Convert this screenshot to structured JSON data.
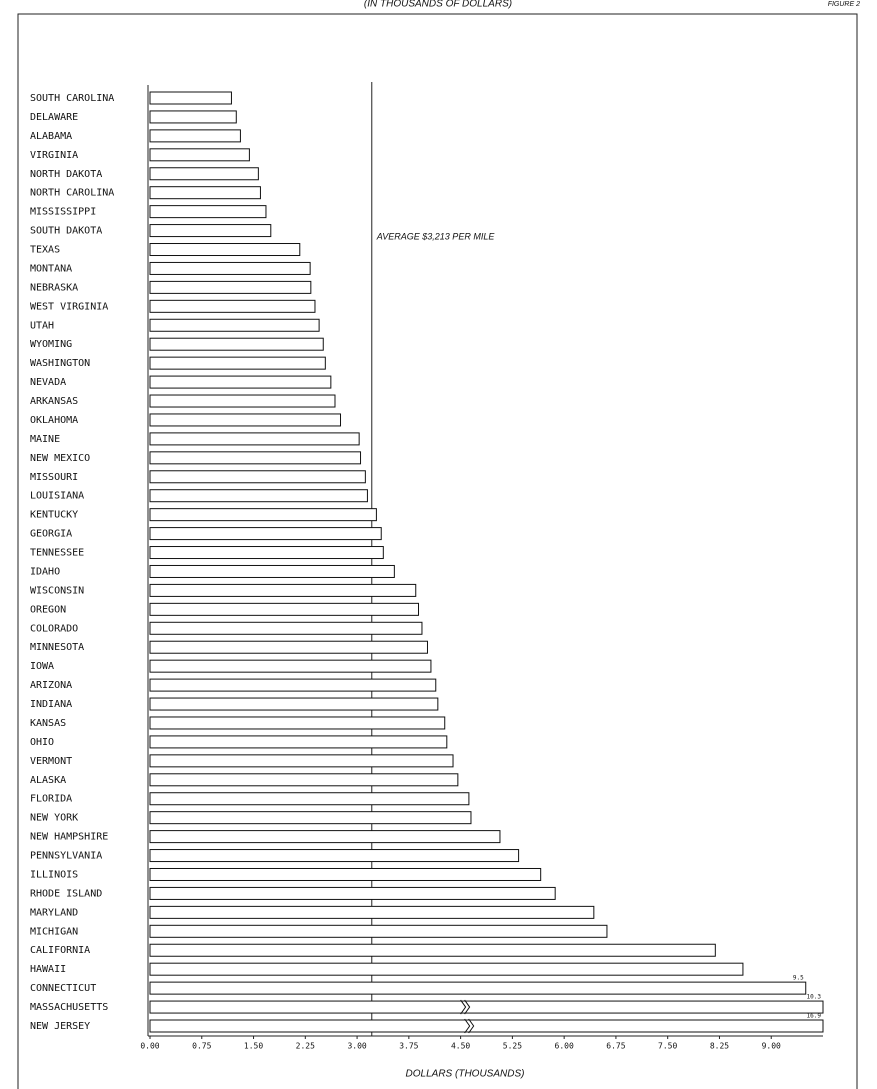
{
  "chart_data": {
    "type": "barh",
    "title": "(IN THOUSANDS OF DOLLARS)",
    "figure_label": "FIGURE 2",
    "x_label": "DOLLARS (THOUSANDS)",
    "annotation": "AVERAGE $3,213 PER MILE",
    "average": 3.213,
    "categories": [
      "SOUTH CAROLINA",
      "DELAWARE",
      "ALABAMA",
      "VIRGINIA",
      "NORTH DAKOTA",
      "NORTH CAROLINA",
      "MISSISSIPPI",
      "SOUTH DAKOTA",
      "TEXAS",
      "MONTANA",
      "NEBRASKA",
      "WEST VIRGINIA",
      "UTAH",
      "WYOMING",
      "WASHINGTON",
      "NEVADA",
      "ARKANSAS",
      "OKLAHOMA",
      "MAINE",
      "NEW MEXICO",
      "MISSOURI",
      "LOUISIANA",
      "KENTUCKY",
      "GEORGIA",
      "TENNESSEE",
      "IDAHO",
      "WISCONSIN",
      "OREGON",
      "COLORADO",
      "MINNESOTA",
      "IOWA",
      "ARIZONA",
      "INDIANA",
      "KANSAS",
      "OHIO",
      "VERMONT",
      "ALASKA",
      "FLORIDA",
      "NEW YORK",
      "NEW HAMPSHIRE",
      "PENNSYLVANIA",
      "ILLINOIS",
      "RHODE ISLAND",
      "MARYLAND",
      "MICHIGAN",
      "CALIFORNIA",
      "HAWAII",
      "CONNECTICUT",
      "MASSACHUSETTS",
      "NEW JERSEY"
    ],
    "values": [
      1.18,
      1.25,
      1.31,
      1.44,
      1.57,
      1.6,
      1.68,
      1.75,
      2.17,
      2.32,
      2.33,
      2.39,
      2.45,
      2.51,
      2.54,
      2.62,
      2.68,
      2.76,
      3.03,
      3.05,
      3.12,
      3.15,
      3.28,
      3.35,
      3.38,
      3.54,
      3.85,
      3.89,
      3.94,
      4.02,
      4.07,
      4.14,
      4.17,
      4.27,
      4.3,
      4.39,
      4.46,
      4.62,
      4.65,
      5.07,
      5.34,
      5.66,
      5.87,
      6.43,
      6.62,
      8.19,
      8.59,
      9.5,
      10.3,
      16.9
    ],
    "value_labels": [
      null,
      null,
      null,
      null,
      null,
      null,
      null,
      null,
      null,
      null,
      null,
      null,
      null,
      null,
      null,
      null,
      null,
      null,
      null,
      null,
      null,
      null,
      null,
      null,
      null,
      null,
      null,
      null,
      null,
      null,
      null,
      null,
      null,
      null,
      null,
      null,
      null,
      null,
      null,
      null,
      null,
      null,
      null,
      null,
      null,
      null,
      null,
      "9.5",
      "10.3",
      "16.9"
    ],
    "color": "#ffffff",
    "xlim": [
      0,
      9.75
    ],
    "xticks": [
      {
        "value": 0,
        "label": "0.00"
      },
      {
        "value": 0.75,
        "label": "0.75"
      },
      {
        "value": 1.5,
        "label": "1.50"
      },
      {
        "value": 2.25,
        "label": "2.25"
      },
      {
        "value": 3,
        "label": "3.00"
      },
      {
        "value": 3.75,
        "label": "3.75"
      },
      {
        "value": 4.5,
        "label": "4.50"
      },
      {
        "value": 5.25,
        "label": "5.25"
      },
      {
        "value": 6,
        "label": "6.00"
      },
      {
        "value": 6.75,
        "label": "6.75"
      },
      {
        "value": 7.5,
        "label": "7.50"
      },
      {
        "value": 8.25,
        "label": "8.25"
      },
      {
        "value": 9,
        "label": "9.00"
      }
    ]
  }
}
